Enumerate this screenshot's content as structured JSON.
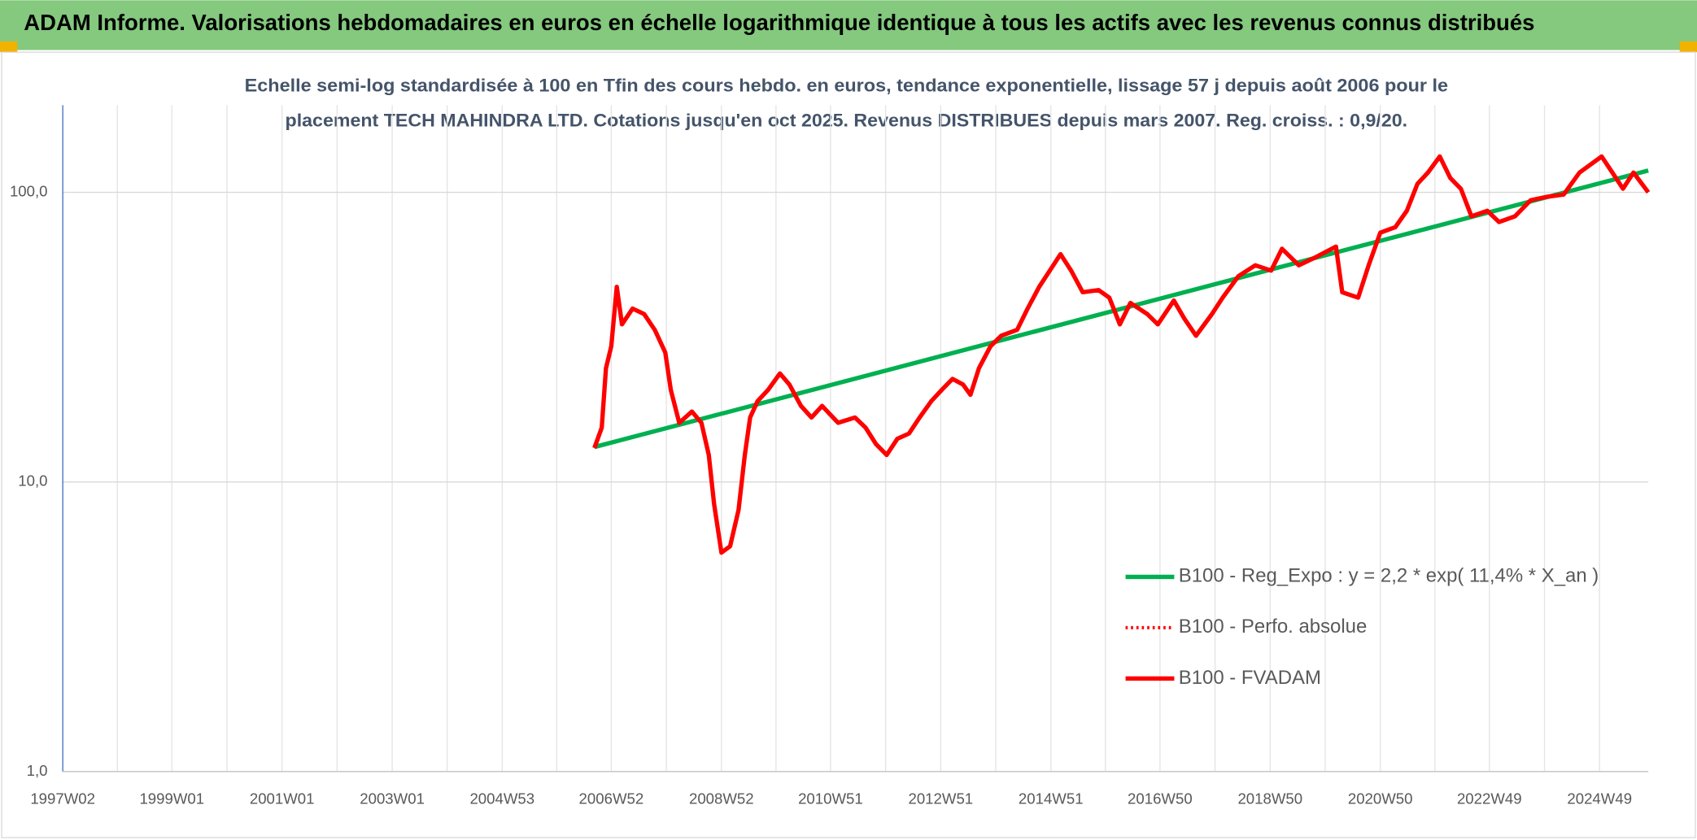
{
  "chart_data": {
    "type": "line",
    "title": "ADAM Informe. Valorisations hebdomadaires en euros en échelle logarithmique identique à tous les actifs avec les revenus connus distribués",
    "subtitle": [
      "Echelle semi-log standardisée à 100 en Tfin des cours hebdo. en euros, tendance exponentielle, lissage 57 j depuis août 2006 pour le",
      "placement TECH MAHINDRA LTD. Cotations jusqu'en oct 2025. Revenus DISTRIBUES depuis mars 2007. Reg. croiss. : 0,9/20."
    ],
    "log_scale": true,
    "grid": true,
    "xlim": [
      "1997W02",
      "2025W43"
    ],
    "xticks": [
      "1997W02",
      "1999W01",
      "2001W01",
      "2003W01",
      "2004W53",
      "2006W52",
      "2008W52",
      "2010W51",
      "2012W51",
      "2014W51",
      "2016W50",
      "2018W50",
      "2020W50",
      "2022W49",
      "2024W49"
    ],
    "ylim": [
      1,
      200
    ],
    "yticks": [
      {
        "value": 1,
        "label": "1,0"
      },
      {
        "value": 10,
        "label": "10,0"
      },
      {
        "value": 100,
        "label": "100,0"
      }
    ],
    "series": [
      {
        "name": "B100 - Reg_Expo : y = 2,2 * exp( 11,4% *  X_an )",
        "color": "#00b050",
        "line_style": "solid",
        "x": [
          "2006W36",
          "2025W43"
        ],
        "values": [
          13.2,
          119
        ]
      },
      {
        "name": "B100 - Perfo. absolue",
        "color": "#ff0000",
        "line_style": "dotted",
        "x": [],
        "values": []
      },
      {
        "name": "B100 - FVADAM",
        "color": "#ff0000",
        "line_style": "solid",
        "x": [
          "2006W36",
          "2006W43",
          "2006W47",
          "2006W52",
          "2007W05",
          "2007W10",
          "2007W20",
          "2007W31",
          "2007W41",
          "2007W51",
          "2008W04",
          "2008W12",
          "2008W24",
          "2008W33",
          "2008W40",
          "2008W45",
          "2008W52",
          "2009W08",
          "2009W16",
          "2009W22",
          "2009W27",
          "2009W34",
          "2009W44",
          "2010W03",
          "2010W12",
          "2010W23",
          "2010W33",
          "2010W43",
          "2011W06",
          "2011W22",
          "2011W32",
          "2011W42",
          "2011W52",
          "2012W10",
          "2012W21",
          "2012W31",
          "2012W42",
          "2012W52",
          "2013W10",
          "2013W20",
          "2013W27",
          "2013W35",
          "2013W46",
          "2014W04",
          "2014W19",
          "2014W29",
          "2014W40",
          "2014W50",
          "2015W08",
          "2015W18",
          "2015W29",
          "2015W44",
          "2016W02",
          "2016W12",
          "2016W22",
          "2016W38",
          "2016W48",
          "2017W11",
          "2017W21",
          "2017W32",
          "2017W47",
          "2018W05",
          "2018W20",
          "2018W36",
          "2018W51",
          "2019W09",
          "2019W25",
          "2019W40",
          "2020W08",
          "2020W14",
          "2020W29",
          "2020W39",
          "2020W50",
          "2021W12",
          "2021W23",
          "2021W33",
          "2021W43",
          "2022W02",
          "2022W12",
          "2022W22",
          "2022W32",
          "2022W47",
          "2023W06",
          "2023W21",
          "2023W36",
          "2023W52",
          "2024W15",
          "2024W30",
          "2024W51",
          "2025W09",
          "2025W19",
          "2025W29",
          "2025W43"
        ],
        "values": [
          13.1,
          15.4,
          24.7,
          29.4,
          47.2,
          35,
          39.7,
          38,
          33.5,
          28,
          20.8,
          16,
          17.5,
          16,
          12.4,
          8.4,
          5.7,
          6,
          8,
          12.4,
          16.7,
          19,
          20.8,
          23.7,
          21.7,
          18.3,
          16.7,
          18.3,
          16,
          16.7,
          15.4,
          13.5,
          12.4,
          14.1,
          14.7,
          16.7,
          19,
          20.8,
          22.7,
          21.7,
          20,
          24.7,
          29.4,
          32,
          33.5,
          39.7,
          47.2,
          53.7,
          61.2,
          53.7,
          45.2,
          46,
          43.3,
          35,
          41.5,
          38,
          35,
          42.3,
          36.6,
          32,
          38,
          43.3,
          51.4,
          56,
          53.7,
          63.9,
          56,
          59.5,
          65,
          45.2,
          43.3,
          56,
          72.6,
          75.8,
          86.4,
          107,
          117,
          133,
          112,
          103,
          82.7,
          86.4,
          79,
          82.7,
          94,
          96.6,
          98.3,
          117,
          133,
          117,
          103,
          117,
          100
        ]
      }
    ]
  }
}
